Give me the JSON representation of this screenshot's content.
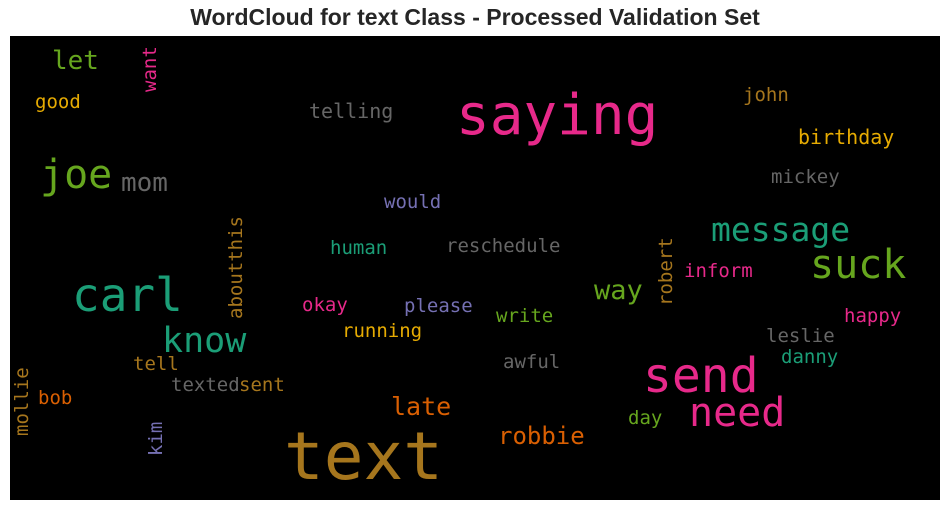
{
  "chart_data": {
    "type": "wordcloud",
    "title": "WordCloud for text Class - Processed Validation Set",
    "words": [
      {
        "text": "text",
        "color": "#a6761d"
      },
      {
        "text": "saying",
        "color": "#e7298a"
      },
      {
        "text": "send",
        "color": "#e7298a"
      },
      {
        "text": "carl",
        "color": "#1b9e77"
      },
      {
        "text": "need",
        "color": "#e7298a"
      },
      {
        "text": "suck",
        "color": "#66a61e"
      },
      {
        "text": "joe",
        "color": "#66a61e"
      },
      {
        "text": "know",
        "color": "#1b9e77"
      },
      {
        "text": "message",
        "color": "#1b9e77"
      },
      {
        "text": "mom",
        "color": "#666666"
      },
      {
        "text": "way",
        "color": "#66a61e"
      },
      {
        "text": "late",
        "color": "#d95f02"
      },
      {
        "text": "robbie",
        "color": "#d95f02"
      },
      {
        "text": "let",
        "color": "#66a61e"
      },
      {
        "text": "telling",
        "color": "#666666"
      },
      {
        "text": "good",
        "color": "#e6ab02"
      },
      {
        "text": "john",
        "color": "#a6761d"
      },
      {
        "text": "birthday",
        "color": "#e6ab02"
      },
      {
        "text": "mickey",
        "color": "#666666"
      },
      {
        "text": "would",
        "color": "#7570b3"
      },
      {
        "text": "human",
        "color": "#1b9e77"
      },
      {
        "text": "reschedule",
        "color": "#666666"
      },
      {
        "text": "inform",
        "color": "#e7298a"
      },
      {
        "text": "okay",
        "color": "#e7298a"
      },
      {
        "text": "please",
        "color": "#7570b3"
      },
      {
        "text": "write",
        "color": "#66a61e"
      },
      {
        "text": "running",
        "color": "#e6ab02"
      },
      {
        "text": "happy",
        "color": "#e7298a"
      },
      {
        "text": "leslie",
        "color": "#666666"
      },
      {
        "text": "danny",
        "color": "#1b9e77"
      },
      {
        "text": "awful",
        "color": "#666666"
      },
      {
        "text": "tell",
        "color": "#a6761d"
      },
      {
        "text": "texted",
        "color": "#666666"
      },
      {
        "text": "sent",
        "color": "#a6761d"
      },
      {
        "text": "bob",
        "color": "#d95f02"
      },
      {
        "text": "day",
        "color": "#66a61e"
      },
      {
        "text": "want",
        "color": "#e7298a"
      },
      {
        "text": "aboutthis",
        "color": "#a6761d"
      },
      {
        "text": "robert",
        "color": "#a6761d"
      },
      {
        "text": "mollie",
        "color": "#a6761d"
      },
      {
        "text": "kim",
        "color": "#7570b3"
      }
    ]
  }
}
